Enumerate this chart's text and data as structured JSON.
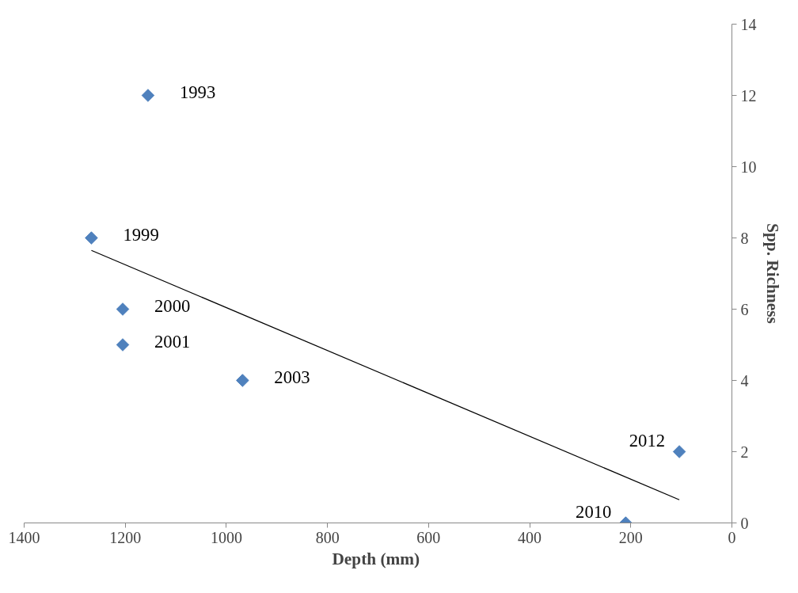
{
  "chart_data": {
    "type": "scatter",
    "xlabel": "Depth  (mm)",
    "ylabel": "Spp. Richness",
    "x": [
      1155,
      1267,
      1205,
      1205,
      968,
      210,
      104
    ],
    "series": [
      {
        "color": "#4f81bd",
        "values": [
          12,
          8,
          6,
          5,
          4,
          0,
          2
        ],
        "marker": "diamond"
      },
      {
        "type": "line",
        "color": "#000000",
        "x": [
          1267,
          104
        ],
        "values": [
          7.65,
          0.65
        ],
        "marker": "none"
      }
    ],
    "annotations": [
      {
        "text": "1993",
        "x": 1155,
        "y": 12
      },
      {
        "text": "1999",
        "x": 1267,
        "y": 8
      },
      {
        "text": "2000",
        "x": 1205,
        "y": 6
      },
      {
        "text": "2001",
        "x": 1205,
        "y": 5
      },
      {
        "text": "2003",
        "x": 968,
        "y": 4
      },
      {
        "text": "2010",
        "x": 210,
        "y": 0
      },
      {
        "text": "2012",
        "x": 104,
        "y": 2
      }
    ],
    "xlim": [
      1400,
      0
    ],
    "xticks": [
      1400,
      1200,
      1000,
      800,
      600,
      400,
      200,
      0
    ],
    "ylim": [
      0,
      14
    ],
    "yticks": [
      0,
      2,
      4,
      6,
      8,
      10,
      12,
      14
    ],
    "grid": false
  }
}
